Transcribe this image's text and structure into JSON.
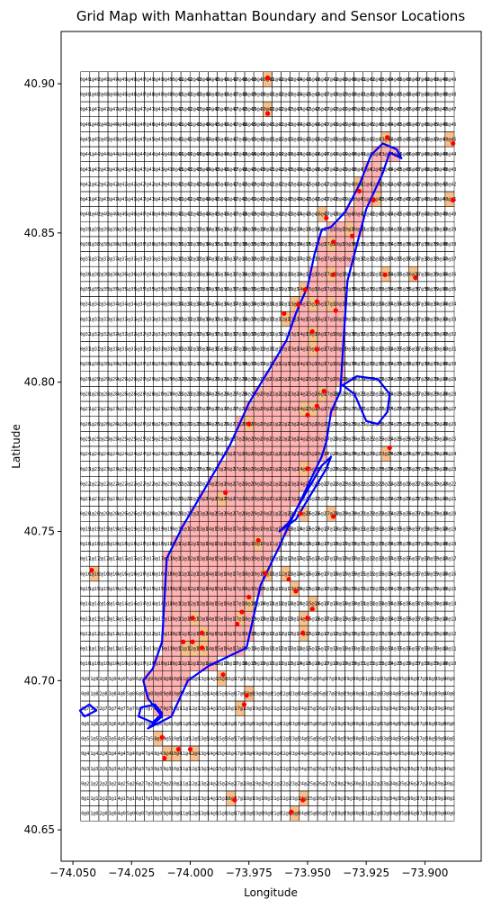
{
  "chart_data": {
    "type": "scatter",
    "title": "Grid Map with Manhattan Boundary and Sensor Locations",
    "xlabel": "Longitude",
    "ylabel": "Latitude",
    "xlim": [
      -74.055,
      -73.876
    ],
    "ylim": [
      40.6395,
      40.9175
    ],
    "xticks": [
      -74.05,
      -74.025,
      -74.0,
      -73.975,
      -73.95,
      -73.925,
      -73.9
    ],
    "xtick_labels": [
      "−74.050",
      "−74.025",
      "−74.000",
      "−73.975",
      "−73.950",
      "−73.925",
      "−73.900"
    ],
    "yticks": [
      40.65,
      40.7,
      40.75,
      40.8,
      40.85,
      40.9
    ],
    "ytick_labels": [
      "40.65",
      "40.70",
      "40.75",
      "40.80",
      "40.85",
      "40.90"
    ],
    "grid": {
      "lon_min": -74.0467,
      "lon_max": -73.8875,
      "lat_min": 40.653,
      "lat_max": 40.904,
      "cols": 41,
      "rows": 50
    },
    "colors": {
      "grid_line": "#000000",
      "manhattan_fill": "#ffb3b3",
      "sensor_cell_fill": "#f8c08a",
      "boundary": "#0000ff",
      "sensor": "#ff0000"
    },
    "manhattan_boundary": [
      [
        -74.018,
        40.684
      ],
      [
        -74.008,
        40.688
      ],
      [
        -74.001,
        40.7
      ],
      [
        -73.992,
        40.705
      ],
      [
        -73.976,
        40.711
      ],
      [
        -73.97,
        40.732
      ],
      [
        -73.962,
        40.745
      ],
      [
        -73.958,
        40.752
      ],
      [
        -73.944,
        40.775
      ],
      [
        -73.942,
        40.78
      ],
      [
        -73.94,
        40.79
      ],
      [
        -73.936,
        40.797
      ],
      [
        -73.935,
        40.81
      ],
      [
        -73.933,
        40.834
      ],
      [
        -73.925,
        40.858
      ],
      [
        -73.918,
        40.87
      ],
      [
        -73.915,
        40.877
      ],
      [
        -73.91,
        40.875
      ],
      [
        -73.912,
        40.878
      ],
      [
        -73.918,
        40.88
      ],
      [
        -73.923,
        40.876
      ],
      [
        -73.928,
        40.866
      ],
      [
        -73.934,
        40.857
      ],
      [
        -73.94,
        40.852
      ],
      [
        -73.944,
        40.851
      ],
      [
        -73.947,
        40.843
      ],
      [
        -73.95,
        40.832
      ],
      [
        -73.955,
        40.823
      ],
      [
        -73.959,
        40.814
      ],
      [
        -73.965,
        40.806
      ],
      [
        -73.975,
        40.793
      ],
      [
        -73.983,
        40.779
      ],
      [
        -73.994,
        40.764
      ],
      [
        -74.003,
        40.752
      ],
      [
        -74.01,
        40.741
      ],
      [
        -74.011,
        40.727
      ],
      [
        -74.012,
        40.713
      ],
      [
        -74.016,
        40.704
      ],
      [
        -74.02,
        40.7
      ],
      [
        -74.018,
        40.694
      ],
      [
        -74.012,
        40.688
      ],
      [
        -74.018,
        40.684
      ]
    ],
    "randalls_island": [
      [
        -73.935,
        40.799
      ],
      [
        -73.93,
        40.796
      ],
      [
        -73.925,
        40.787
      ],
      [
        -73.92,
        40.786
      ],
      [
        -73.916,
        40.79
      ],
      [
        -73.915,
        40.796
      ],
      [
        -73.92,
        40.801
      ],
      [
        -73.929,
        40.802
      ],
      [
        -73.935,
        40.799
      ]
    ],
    "roosevelt_island": [
      [
        -73.962,
        40.75
      ],
      [
        -73.958,
        40.753
      ],
      [
        -73.944,
        40.772
      ],
      [
        -73.94,
        40.775
      ],
      [
        -73.942,
        40.771
      ],
      [
        -73.955,
        40.754
      ],
      [
        -73.962,
        40.75
      ]
    ],
    "governors_island": [
      [
        -74.022,
        40.688
      ],
      [
        -74.016,
        40.686
      ],
      [
        -74.012,
        40.689
      ],
      [
        -74.015,
        40.692
      ],
      [
        -74.021,
        40.691
      ],
      [
        -74.022,
        40.688
      ]
    ],
    "liberty_island": [
      [
        -74.043,
        40.692
      ],
      [
        -74.04,
        40.69
      ],
      [
        -74.045,
        40.688
      ],
      [
        -74.047,
        40.69
      ],
      [
        -74.043,
        40.692
      ]
    ],
    "sensors": [
      [
        -73.967,
        40.902
      ],
      [
        -73.967,
        40.89
      ],
      [
        -73.916,
        40.882
      ],
      [
        -73.888,
        40.88
      ],
      [
        -73.888,
        40.861
      ],
      [
        -73.922,
        40.861
      ],
      [
        -73.942,
        40.855
      ],
      [
        -73.931,
        40.849
      ],
      [
        -73.939,
        40.847
      ],
      [
        -73.917,
        40.836
      ],
      [
        -73.939,
        40.836
      ],
      [
        -73.904,
        40.835
      ],
      [
        -73.951,
        40.831
      ],
      [
        -73.946,
        40.827
      ],
      [
        -73.954,
        40.826
      ],
      [
        -73.96,
        40.823
      ],
      [
        -73.938,
        40.824
      ],
      [
        -73.948,
        40.817
      ],
      [
        -73.946,
        40.811
      ],
      [
        -73.943,
        40.797
      ],
      [
        -73.946,
        40.792
      ],
      [
        -73.95,
        40.789
      ],
      [
        -73.975,
        40.786
      ],
      [
        -73.915,
        40.778
      ],
      [
        -73.95,
        40.771
      ],
      [
        -73.985,
        40.763
      ],
      [
        -73.939,
        40.755
      ],
      [
        -74.042,
        40.737
      ],
      [
        -73.968,
        40.736
      ],
      [
        -73.958,
        40.734
      ],
      [
        -73.955,
        40.73
      ],
      [
        -73.975,
        40.728
      ],
      [
        -73.948,
        40.724
      ],
      [
        -73.978,
        40.723
      ],
      [
        -73.95,
        40.721
      ],
      [
        -73.98,
        40.719
      ],
      [
        -73.999,
        40.721
      ],
      [
        -73.995,
        40.716
      ],
      [
        -73.952,
        40.716
      ],
      [
        -73.999,
        40.713
      ],
      [
        -74.003,
        40.713
      ],
      [
        -73.995,
        40.711
      ],
      [
        -73.986,
        40.702
      ],
      [
        -73.976,
        40.695
      ],
      [
        -73.977,
        40.692
      ],
      [
        -74.012,
        40.681
      ],
      [
        -74.005,
        40.677
      ],
      [
        -74.0,
        40.677
      ],
      [
        -74.011,
        40.674
      ],
      [
        -73.981,
        40.66
      ],
      [
        -73.952,
        40.66
      ],
      [
        -73.957,
        40.656
      ],
      [
        -73.928,
        40.864
      ],
      [
        -73.953,
        40.756
      ],
      [
        -73.971,
        40.747
      ]
    ]
  }
}
